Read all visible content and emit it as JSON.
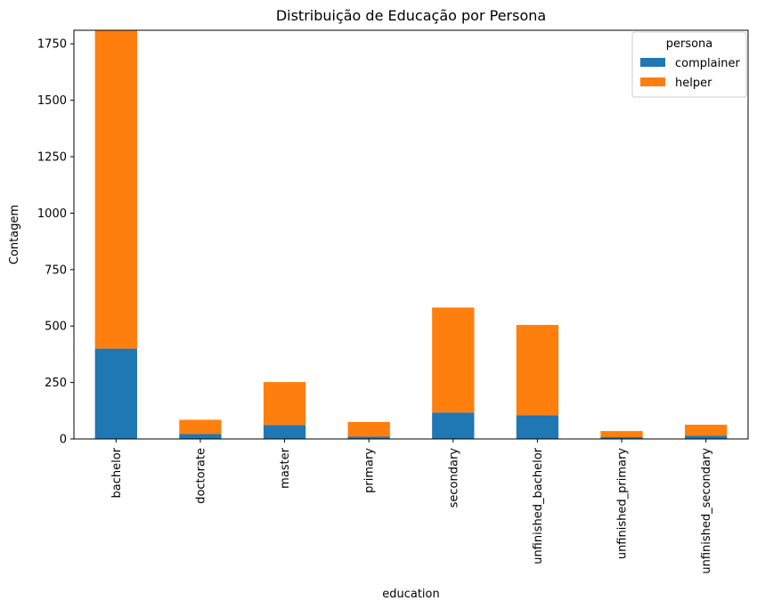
{
  "chart_data": {
    "type": "bar",
    "stacked": true,
    "title": "Distribuição de Educação por Persona",
    "xlabel": "education",
    "ylabel": "Contagem",
    "categories": [
      "bachelor",
      "doctorate",
      "master",
      "primary",
      "secondary",
      "unfinished_bachelor",
      "unfinished_primary",
      "unfinished_secondary"
    ],
    "series": [
      {
        "name": "complainer",
        "color": "#1f77b4",
        "values": [
          400,
          22,
          62,
          10,
          117,
          105,
          8,
          15
        ]
      },
      {
        "name": "helper",
        "color": "#ff7f0e",
        "values": [
          1410,
          63,
          190,
          65,
          465,
          400,
          27,
          48
        ]
      }
    ],
    "ylim": [
      0,
      1810
    ],
    "yticks": [
      0,
      250,
      500,
      750,
      1000,
      1250,
      1500,
      1750
    ],
    "legend": {
      "title": "persona",
      "placement": "top-right"
    },
    "grid": false
  }
}
